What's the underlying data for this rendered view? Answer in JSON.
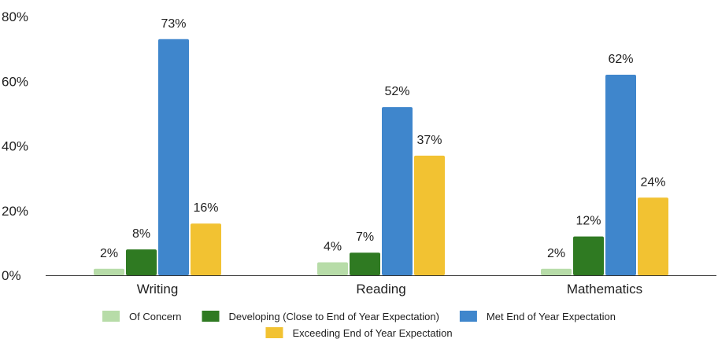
{
  "chart_data": {
    "type": "bar",
    "categories": [
      "Writing",
      "Reading",
      "Mathematics"
    ],
    "series": [
      {
        "name": "Of Concern",
        "values": [
          2,
          4,
          2
        ],
        "labels": [
          "2%",
          "4%",
          "2%"
        ],
        "color": "#b7dca8"
      },
      {
        "name": "Developing (Close to End of Year Expectation)",
        "values": [
          8,
          7,
          12
        ],
        "labels": [
          "8%",
          "7%",
          "12%"
        ],
        "color": "#2f7a22"
      },
      {
        "name": "Met End of Year Expectation",
        "values": [
          73,
          52,
          62
        ],
        "labels": [
          "73%",
          "52%",
          "62%"
        ],
        "color": "#3f86cc"
      },
      {
        "name": "Exceeding End of Year Expectation",
        "values": [
          16,
          37,
          24
        ],
        "labels": [
          "16%",
          "37%",
          "24%"
        ],
        "color": "#f2c232"
      }
    ],
    "ylim": [
      0,
      80
    ],
    "yticks": [
      0,
      20,
      40,
      60,
      80
    ],
    "ytick_labels": [
      "0%",
      "20%",
      "40%",
      "60%",
      "80%"
    ],
    "grid": false,
    "legend_position": "bottom",
    "title": "",
    "xlabel": "",
    "ylabel": ""
  }
}
